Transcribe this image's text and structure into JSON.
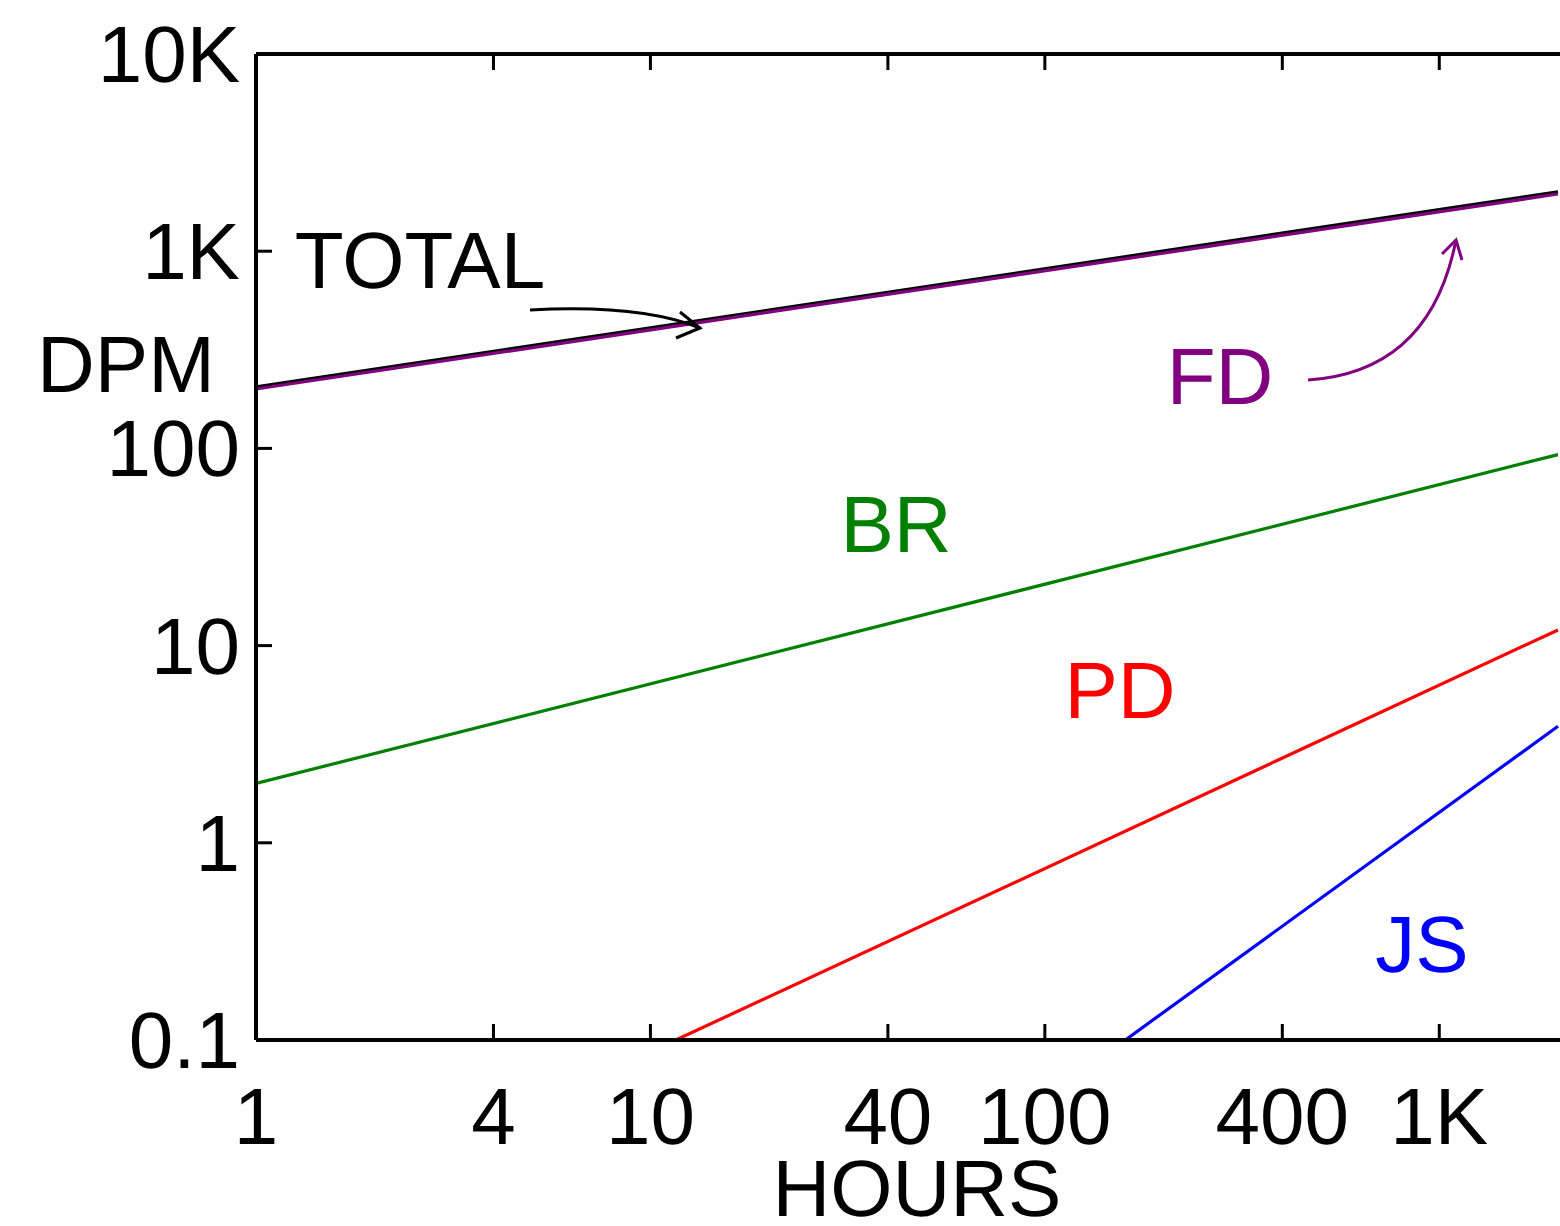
{
  "chart_data": {
    "type": "line",
    "xlabel": "HOURS",
    "ylabel": "DPM",
    "log": "xy",
    "grid": false,
    "marker": "none",
    "line_style": "solid",
    "xlim": [
      1,
      2000
    ],
    "xticks": [
      1,
      4,
      10,
      40,
      100,
      400,
      {
        "value": 1000,
        "label": "1K"
      }
    ],
    "ylim": [
      0.1,
      10000
    ],
    "yticks": [
      0.1,
      1,
      10,
      100,
      {
        "value": 1000,
        "label": "1K"
      },
      {
        "value": 10000,
        "label": "10K"
      }
    ],
    "series": [
      {
        "name": "TOTAL",
        "color": "#000000",
        "x": [
          1,
          2000
        ],
        "values": [
          205,
          2000
        ]
      },
      {
        "name": "FD",
        "color": "#800080",
        "x": [
          1,
          2000
        ],
        "values": [
          200,
          1950
        ]
      },
      {
        "name": "BR",
        "color": "#008000",
        "x": [
          1,
          2000
        ],
        "values": [
          2,
          93
        ]
      },
      {
        "name": "PD",
        "color": "#ff0000",
        "x": [
          11.6,
          2000
        ],
        "values": [
          0.1,
          12
        ]
      },
      {
        "name": "JS",
        "color": "#0000ff",
        "x": [
          160,
          2000
        ],
        "values": [
          0.1,
          3.9
        ]
      }
    ]
  }
}
